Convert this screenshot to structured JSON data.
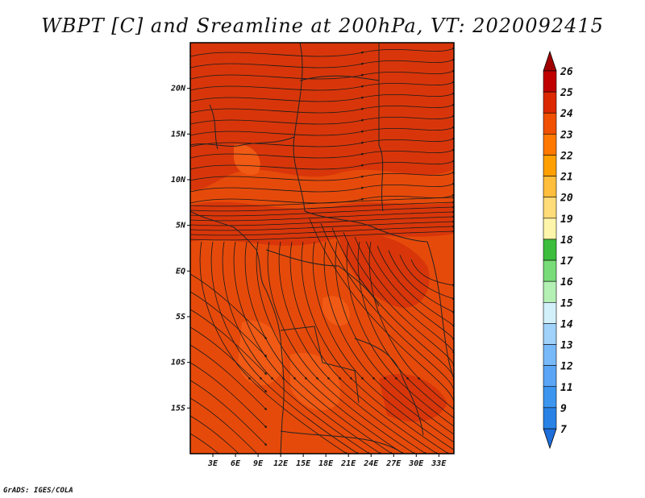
{
  "title": "WBPT [C] and Sreamline at 200hPa, VT: 2020092415",
  "credit": "GrADS: IGES/COLA",
  "map": {
    "lon_range": [
      0,
      35
    ],
    "lat_range": [
      -20,
      25
    ],
    "lon_ticks": [
      {
        "v": 3,
        "label": "3E"
      },
      {
        "v": 6,
        "label": "6E"
      },
      {
        "v": 9,
        "label": "9E"
      },
      {
        "v": 12,
        "label": "12E"
      },
      {
        "v": 15,
        "label": "15E"
      },
      {
        "v": 18,
        "label": "18E"
      },
      {
        "v": 21,
        "label": "21E"
      },
      {
        "v": 24,
        "label": "24E"
      },
      {
        "v": 27,
        "label": "27E"
      },
      {
        "v": 30,
        "label": "30E"
      },
      {
        "v": 33,
        "label": "33E"
      }
    ],
    "lat_ticks": [
      {
        "v": 20,
        "label": "20N"
      },
      {
        "v": 15,
        "label": "15N"
      },
      {
        "v": 10,
        "label": "10N"
      },
      {
        "v": 5,
        "label": "5N"
      },
      {
        "v": 0,
        "label": "EQ"
      },
      {
        "v": -5,
        "label": "5S"
      },
      {
        "v": -10,
        "label": "10S"
      },
      {
        "v": -15,
        "label": "15S"
      }
    ]
  },
  "colorbar": {
    "levels": [
      "7",
      "9",
      "11",
      "12",
      "13",
      "14",
      "15",
      "16",
      "17",
      "18",
      "19",
      "20",
      "21",
      "22",
      "23",
      "24",
      "25",
      "26"
    ],
    "colors": [
      "#1e6edc",
      "#2882e6",
      "#3c96f0",
      "#5aa5f5",
      "#78b9fa",
      "#a0d2fa",
      "#d2f0fa",
      "#b4f0b4",
      "#78dc78",
      "#3cbe3c",
      "#fff5aa",
      "#ffdc78",
      "#ffbe3c",
      "#ffa000",
      "#ff7800",
      "#f05000",
      "#dc2800",
      "#c00000",
      "#a00000"
    ]
  }
}
